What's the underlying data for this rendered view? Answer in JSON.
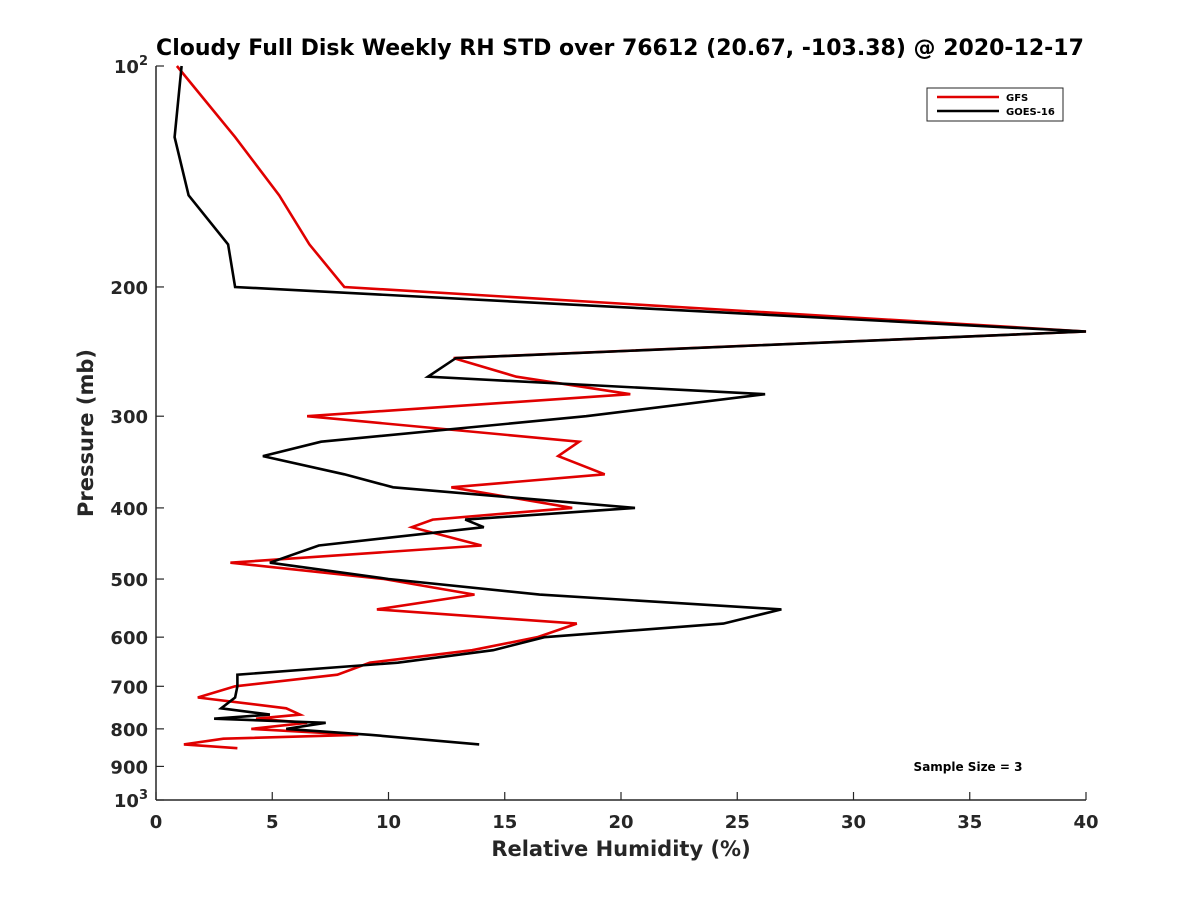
{
  "chart_data": {
    "type": "line",
    "title": "Cloudy Full Disk Weekly RH STD over 76612 (20.67, -103.38) @ 2020-12-17",
    "xlabel": "Relative Humidity (%)",
    "ylabel": "Pressure (mb)",
    "xlim": [
      0,
      40
    ],
    "ylim": [
      100,
      1000
    ],
    "yscale": "log",
    "y_reversed": true,
    "x_ticks": [
      0,
      5,
      10,
      15,
      20,
      25,
      30,
      35,
      40
    ],
    "x_tick_labels": [
      "0",
      "5",
      "10",
      "15",
      "20",
      "25",
      "30",
      "35",
      "40"
    ],
    "y_ticks": [
      100,
      200,
      300,
      400,
      500,
      600,
      700,
      800,
      900,
      1000
    ],
    "y_tick_labels": [
      {
        "base": "10",
        "exp": "2"
      },
      {
        "base": "200",
        "exp": ""
      },
      {
        "base": "300",
        "exp": ""
      },
      {
        "base": "400",
        "exp": ""
      },
      {
        "base": "500",
        "exp": ""
      },
      {
        "base": "600",
        "exp": ""
      },
      {
        "base": "700",
        "exp": ""
      },
      {
        "base": "800",
        "exp": ""
      },
      {
        "base": "900",
        "exp": ""
      },
      {
        "base": "10",
        "exp": "3"
      }
    ],
    "legend_position": "top-right",
    "annotation": "Sample Size = 3",
    "series": [
      {
        "name": "GFS",
        "color": "#e00000",
        "points": [
          [
            0.9,
            100
          ],
          [
            3.4,
            125
          ],
          [
            5.3,
            150
          ],
          [
            6.6,
            175
          ],
          [
            8.1,
            200
          ],
          [
            40,
            230
          ],
          [
            12.8,
            250
          ],
          [
            15.5,
            265
          ],
          [
            20.4,
            280
          ],
          [
            6.5,
            300
          ],
          [
            18.2,
            325
          ],
          [
            17.3,
            340
          ],
          [
            19.3,
            360
          ],
          [
            12.7,
            375
          ],
          [
            17.9,
            400
          ],
          [
            11.9,
            415
          ],
          [
            11.0,
            425
          ],
          [
            14.0,
            450
          ],
          [
            3.2,
            475
          ],
          [
            9.8,
            500
          ],
          [
            13.7,
            525
          ],
          [
            9.5,
            550
          ],
          [
            18.1,
            575
          ],
          [
            16.4,
            600
          ],
          [
            13.6,
            625
          ],
          [
            9.2,
            650
          ],
          [
            7.8,
            675
          ],
          [
            3.4,
            700
          ],
          [
            1.8,
            725
          ],
          [
            5.6,
            750
          ],
          [
            6.2,
            765
          ],
          [
            4.3,
            775
          ],
          [
            6.5,
            785
          ],
          [
            4.1,
            800
          ],
          [
            8.7,
            815
          ],
          [
            2.9,
            825
          ],
          [
            1.2,
            840
          ],
          [
            3.5,
            850
          ]
        ]
      },
      {
        "name": "GOES-16",
        "color": "#000000",
        "points": [
          [
            1.1,
            100
          ],
          [
            0.8,
            125
          ],
          [
            1.4,
            150
          ],
          [
            3.1,
            175
          ],
          [
            3.4,
            200
          ],
          [
            40,
            230
          ],
          [
            12.9,
            250
          ],
          [
            11.7,
            265
          ],
          [
            26.2,
            280
          ],
          [
            18.5,
            300
          ],
          [
            7.1,
            325
          ],
          [
            4.6,
            340
          ],
          [
            8.1,
            360
          ],
          [
            10.2,
            375
          ],
          [
            20.6,
            400
          ],
          [
            13.3,
            415
          ],
          [
            14.1,
            425
          ],
          [
            7.0,
            450
          ],
          [
            4.9,
            475
          ],
          [
            10.0,
            500
          ],
          [
            16.5,
            525
          ],
          [
            26.9,
            550
          ],
          [
            24.4,
            575
          ],
          [
            16.7,
            600
          ],
          [
            14.5,
            625
          ],
          [
            10.4,
            650
          ],
          [
            3.5,
            675
          ],
          [
            3.5,
            700
          ],
          [
            3.4,
            725
          ],
          [
            2.8,
            750
          ],
          [
            4.9,
            765
          ],
          [
            2.5,
            775
          ],
          [
            7.3,
            785
          ],
          [
            5.6,
            800
          ],
          [
            9.2,
            815
          ],
          [
            13.9,
            840
          ]
        ]
      }
    ]
  }
}
